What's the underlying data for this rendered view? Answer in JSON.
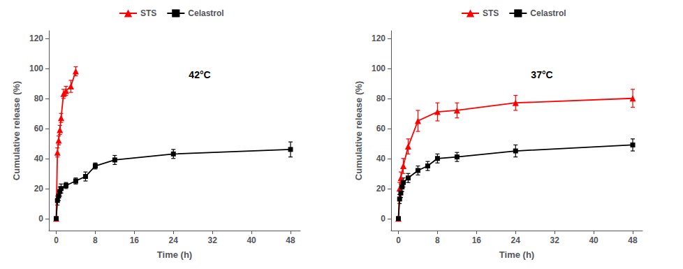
{
  "chart_data": [
    {
      "type": "line",
      "annotation": "42°C",
      "xlabel": "Time (h)",
      "ylabel": "Cumulative release (%)",
      "xlim": [
        -1.5,
        50
      ],
      "xticks": [
        0,
        8,
        16,
        24,
        32,
        40,
        48
      ],
      "ylim": [
        -8,
        125
      ],
      "yticks": [
        0,
        20,
        40,
        60,
        80,
        100,
        120
      ],
      "grid": false,
      "legend": "top",
      "series": [
        {
          "name": "STS",
          "color": "#FF0000",
          "marker": "triangle",
          "x": [
            0,
            0.25,
            0.5,
            0.75,
            1,
            1.5,
            2,
            3,
            4
          ],
          "values": [
            0,
            44,
            52,
            59,
            67,
            83,
            85,
            88,
            98
          ],
          "errors": [
            1,
            3,
            3,
            3,
            3,
            3,
            3,
            4,
            3
          ]
        },
        {
          "name": "Celastrol",
          "color": "#000000",
          "marker": "square",
          "x": [
            0,
            0.25,
            0.5,
            0.75,
            1,
            2,
            4,
            6,
            8,
            12,
            24,
            48
          ],
          "values": [
            0,
            12,
            15,
            18,
            20,
            22,
            25,
            28,
            35,
            39,
            43,
            46
          ],
          "errors": [
            1,
            3,
            3,
            3,
            3,
            2,
            2,
            3,
            2,
            3,
            3,
            5
          ]
        }
      ]
    },
    {
      "type": "line",
      "annotation": "37°C",
      "xlabel": "Time (h)",
      "ylabel": "Cumulative release (%)",
      "xlim": [
        -1.5,
        50
      ],
      "xticks": [
        0,
        8,
        16,
        24,
        32,
        40,
        48
      ],
      "ylim": [
        -8,
        125
      ],
      "yticks": [
        0,
        20,
        40,
        60,
        80,
        100,
        120
      ],
      "grid": false,
      "legend": "top",
      "series": [
        {
          "name": "STS",
          "color": "#FF0000",
          "marker": "triangle",
          "x": [
            0,
            0.25,
            0.5,
            1,
            2,
            4,
            8,
            12,
            24,
            48
          ],
          "values": [
            0,
            20,
            27,
            35,
            48,
            65,
            71,
            72,
            77,
            80
          ],
          "errors": [
            1,
            4,
            4,
            5,
            5,
            7,
            6,
            5,
            5,
            6
          ]
        },
        {
          "name": "Celastrol",
          "color": "#000000",
          "marker": "square",
          "x": [
            0,
            0.25,
            0.5,
            0.75,
            1,
            2,
            4,
            6,
            8,
            12,
            24,
            48
          ],
          "values": [
            0,
            13,
            17,
            21,
            24,
            27,
            32,
            35,
            40,
            41,
            45,
            49
          ],
          "errors": [
            1,
            3,
            3,
            3,
            3,
            3,
            3,
            3,
            3,
            3,
            4,
            4
          ]
        }
      ]
    }
  ]
}
